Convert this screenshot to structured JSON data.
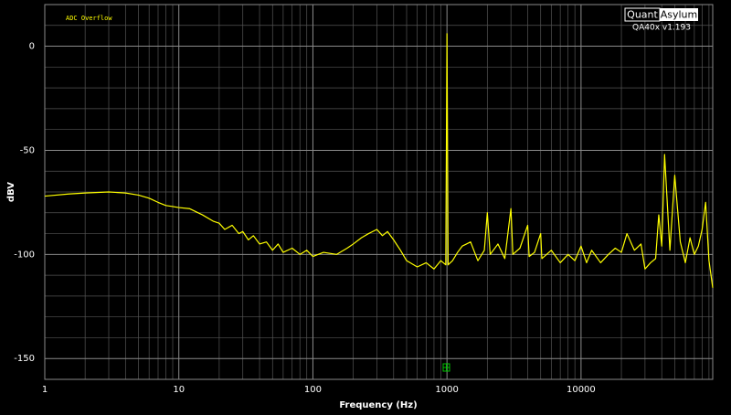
{
  "chart_data": {
    "type": "line",
    "xscale": "log",
    "annotation": "ADC Overflow",
    "brand_left": "Quant",
    "brand_right": "Asylum",
    "version": "QA40x v1.193",
    "xlabel": "Frequency (Hz)",
    "ylabel": "dBV",
    "xlim": [
      1,
      96000
    ],
    "ylim": [
      -160,
      20
    ],
    "xticks": [
      1,
      10,
      100,
      1000,
      10000
    ],
    "yticks": [
      0,
      -50,
      -100,
      -150
    ],
    "xminorticks": [
      2,
      3,
      4,
      5,
      6,
      7,
      8,
      9,
      20,
      30,
      40,
      50,
      60,
      70,
      80,
      90,
      200,
      300,
      400,
      500,
      600,
      700,
      800,
      900,
      2000,
      3000,
      4000,
      5000,
      6000,
      7000,
      8000,
      9000,
      20000,
      30000,
      40000,
      50000,
      60000,
      70000,
      80000,
      90000
    ],
    "yminorticks": [
      10,
      -10,
      -20,
      -30,
      -40,
      -60,
      -70,
      -80,
      -90,
      -110,
      -120,
      -130,
      -140
    ],
    "grid": true,
    "x": [
      1,
      1.5,
      2,
      3,
      4,
      5,
      6,
      7,
      8,
      9,
      10,
      12,
      15,
      18,
      20,
      22,
      25,
      28,
      30,
      33,
      36,
      40,
      45,
      50,
      55,
      60,
      70,
      80,
      90,
      100,
      120,
      150,
      180,
      200,
      230,
      260,
      300,
      330,
      360,
      400,
      450,
      500,
      600,
      700,
      800,
      900,
      980,
      1000,
      1020,
      1100,
      1200,
      1300,
      1500,
      1700,
      1900,
      2000,
      2100,
      2400,
      2700,
      3000,
      3100,
      3500,
      4000,
      4100,
      4500,
      5000,
      5100,
      6000,
      7000,
      8000,
      9000,
      10000,
      11000,
      12000,
      14000,
      16000,
      18000,
      20000,
      22000,
      25000,
      28000,
      30000,
      33000,
      36000,
      38000,
      40000,
      42000,
      46000,
      50000,
      55000,
      60000,
      65000,
      70000,
      75000,
      80000,
      85000,
      90000,
      96000
    ],
    "series": [
      {
        "color": "#ffff00",
        "values": [
          -72,
          -71,
          -70.5,
          -70,
          -70.5,
          -71.5,
          -73,
          -75,
          -76.5,
          -77,
          -77.5,
          -78,
          -81,
          -84,
          -85,
          -88,
          -86,
          -90,
          -89,
          -93,
          -91,
          -95,
          -94,
          -98,
          -95,
          -99,
          -97,
          -100,
          -98,
          -101,
          -99,
          -100,
          -97,
          -95,
          -92,
          -90,
          -88,
          -91,
          -89,
          -93,
          -98,
          -103,
          -106,
          -104,
          -107,
          -103,
          -105,
          6,
          -105,
          -103,
          -99,
          -96,
          -94,
          -103,
          -98,
          -80,
          -100,
          -95,
          -102,
          -78,
          -100,
          -97,
          -86,
          -101,
          -99,
          -90,
          -102,
          -98,
          -104,
          -100,
          -103,
          -96,
          -104,
          -98,
          -104,
          -100,
          -97,
          -99,
          -90,
          -98,
          -95,
          -107,
          -104,
          -102,
          -81,
          -96,
          -52,
          -98,
          -62,
          -94,
          -104,
          -92,
          -100,
          -96,
          -88,
          -75,
          -103,
          -116
        ]
      }
    ]
  }
}
